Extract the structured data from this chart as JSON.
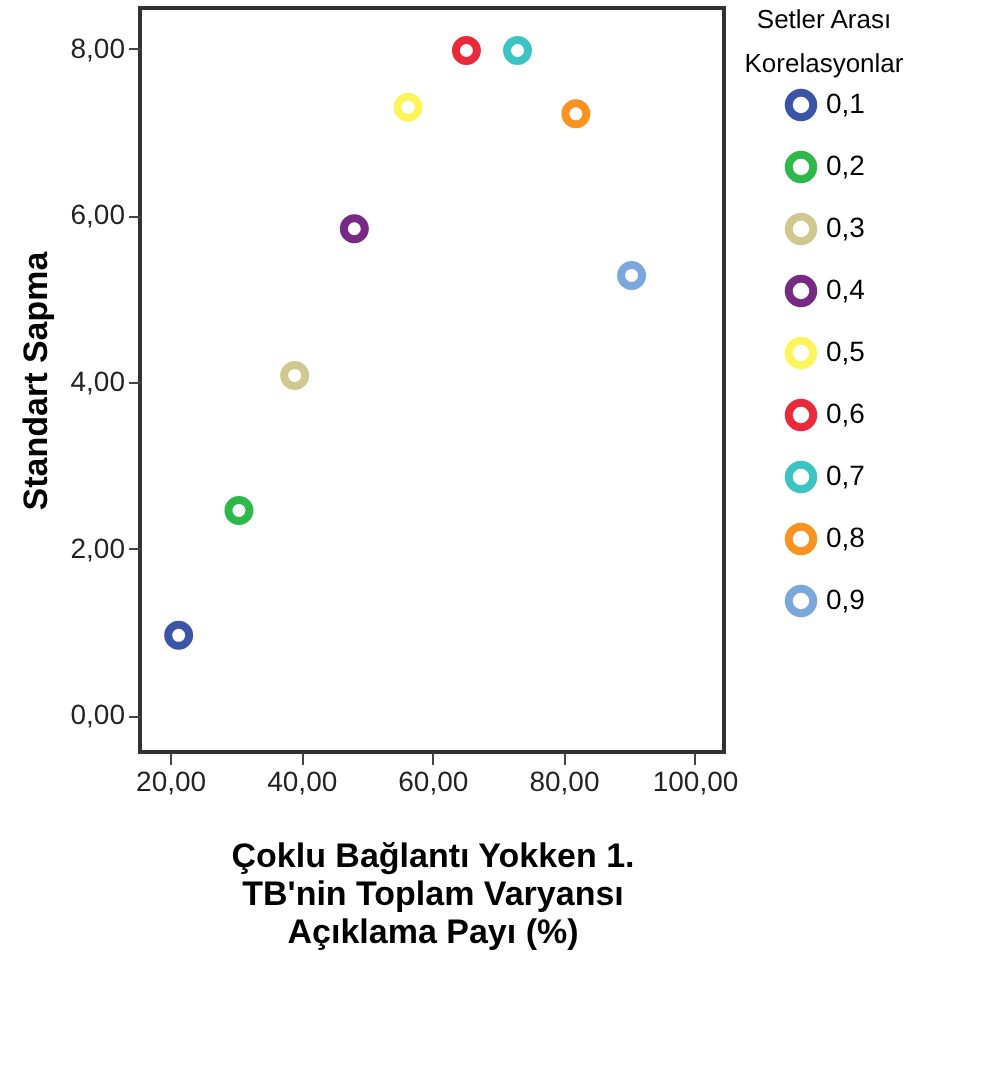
{
  "chart_data": {
    "type": "scatter",
    "xlabel": "Çoklu Bağlantı Yokken 1.\nTB'nin Toplam Varyansı\nAçıklama Payı (%)",
    "ylabel": "Standart Sapma",
    "legend_title": "Setler Arası\nKorelasyonlar",
    "legend": "right",
    "marker": "circle",
    "grid": false,
    "xlim": [
      15.4,
      104.5
    ],
    "xticks": [
      {
        "value": 20,
        "label": "20,00"
      },
      {
        "value": 40,
        "label": "40,00"
      },
      {
        "value": 60,
        "label": "60,00"
      },
      {
        "value": 80,
        "label": "80,00"
      },
      {
        "value": 100,
        "label": "100,00"
      }
    ],
    "ylim": [
      -0.44,
      8.49
    ],
    "yticks": [
      {
        "value": 0,
        "label": "0,00"
      },
      {
        "value": 2,
        "label": "2,00"
      },
      {
        "value": 4,
        "label": "4,00"
      },
      {
        "value": 6,
        "label": "6,00"
      },
      {
        "value": 8,
        "label": "8,00"
      }
    ],
    "series": [
      {
        "name": "0,1",
        "color": "#3a55a8",
        "x": [
          21.3
        ],
        "values": [
          0.96
        ]
      },
      {
        "name": "0,2",
        "color": "#2db84a",
        "x": [
          30.5
        ],
        "values": [
          2.46
        ]
      },
      {
        "name": "0,3",
        "color": "#cfc98f",
        "x": [
          39.0
        ],
        "values": [
          4.08
        ]
      },
      {
        "name": "0,4",
        "color": "#762a83",
        "x": [
          48.1
        ],
        "values": [
          5.84
        ]
      },
      {
        "name": "0,5",
        "color": "#fbf55b",
        "x": [
          56.3
        ],
        "values": [
          7.3
        ]
      },
      {
        "name": "0,6",
        "color": "#ea2a3a",
        "x": [
          65.2
        ],
        "values": [
          7.98
        ]
      },
      {
        "name": "0,7",
        "color": "#3cc3c3",
        "x": [
          73.0
        ],
        "values": [
          7.98
        ]
      },
      {
        "name": "0,8",
        "color": "#f7931e",
        "x": [
          81.9
        ],
        "values": [
          7.22
        ]
      },
      {
        "name": "0,9",
        "color": "#7aa7dc",
        "x": [
          90.4
        ],
        "values": [
          5.28
        ]
      }
    ]
  }
}
